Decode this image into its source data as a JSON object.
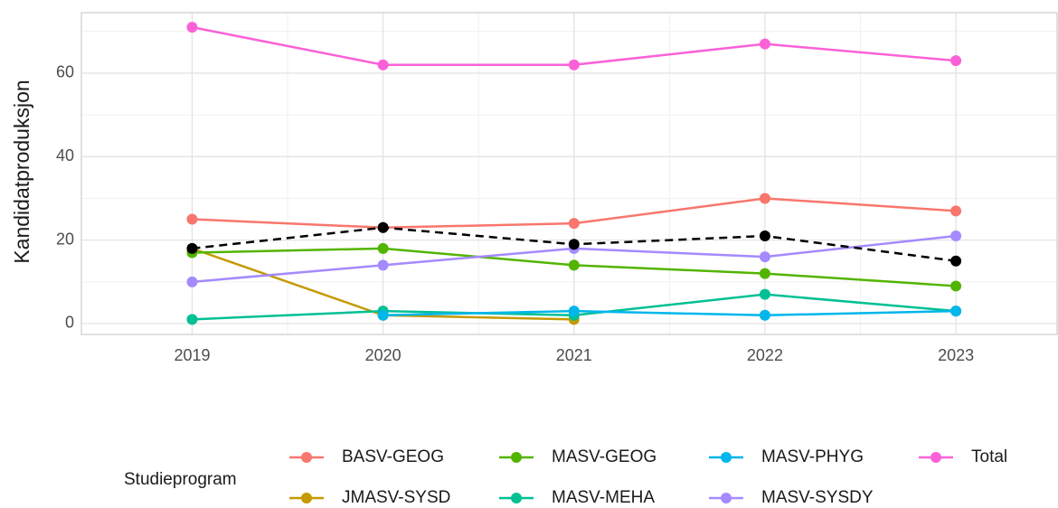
{
  "chart_data": {
    "type": "line",
    "y_label": "Kandidatproduksjon",
    "legend_title": "Studieprogram",
    "legend_position": "bottom",
    "x": [
      2019,
      2020,
      2021,
      2022,
      2023
    ],
    "xlim": [
      2018.42,
      2023.53
    ],
    "xticks": [
      2019,
      2020,
      2021,
      2022,
      2023
    ],
    "xminor": [
      2019.5,
      2020.5,
      2021.5,
      2022.5
    ],
    "ylim": [
      -2.6,
      74.5
    ],
    "yticks": [
      0,
      20,
      40,
      60
    ],
    "yminor": [
      10,
      30,
      50,
      70
    ],
    "grid": true,
    "series": [
      {
        "name": "BASV-GEOG",
        "color": "#F8766D",
        "values": [
          25,
          23,
          24,
          30,
          27
        ]
      },
      {
        "name": "JMASV-SYSD",
        "color": "#C49A00",
        "values": [
          18,
          2,
          1,
          null,
          null
        ]
      },
      {
        "name": "MASV-GEOG",
        "color": "#53B400",
        "values": [
          17,
          18,
          14,
          12,
          9
        ]
      },
      {
        "name": "MASV-MEHA",
        "color": "#00C094",
        "values": [
          1,
          3,
          2,
          7,
          3
        ]
      },
      {
        "name": "MASV-PHYG",
        "color": "#00B6EB",
        "values": [
          null,
          2,
          3,
          2,
          3
        ]
      },
      {
        "name": "MASV-SYSDY",
        "color": "#A58AFF",
        "values": [
          10,
          14,
          18,
          16,
          21
        ]
      },
      {
        "name": "Total",
        "color": "#FB61D7",
        "values": [
          71,
          62,
          62,
          67,
          63
        ]
      },
      {
        "color": "#000000",
        "dashed": true,
        "values": [
          18,
          23,
          19,
          21,
          15
        ]
      }
    ]
  }
}
